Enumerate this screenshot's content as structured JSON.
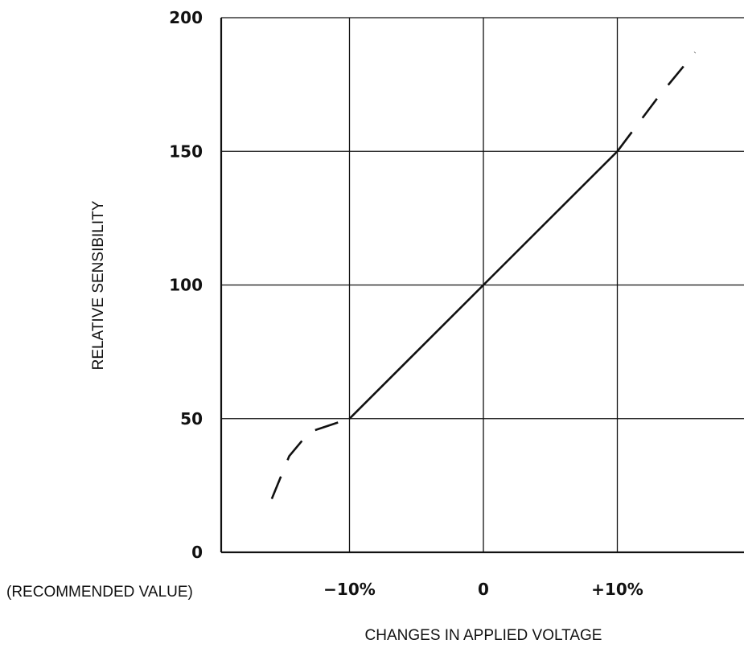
{
  "chart_data": {
    "type": "line",
    "title": "",
    "xlabel": "CHANGES IN APPLIED VOLTAGE",
    "ylabel": "RELATIVE SENSIBILITY",
    "note": "(RECOMMENDED VALUE)",
    "x_unit": "%",
    "xlim": [
      -20,
      20
    ],
    "ylim": [
      0,
      200
    ],
    "x_ticks": [
      {
        "value": -10,
        "label": "−10%"
      },
      {
        "value": 0,
        "label": "0"
      },
      {
        "value": 10,
        "label": "+10%"
      }
    ],
    "y_ticks": [
      {
        "value": 0,
        "label": "0"
      },
      {
        "value": 50,
        "label": "50"
      },
      {
        "value": 100,
        "label": "100"
      },
      {
        "value": 150,
        "label": "150"
      },
      {
        "value": 200,
        "label": "200"
      }
    ],
    "grid": true,
    "series": [
      {
        "style": "solid",
        "points": [
          [
            -10,
            50
          ],
          [
            0,
            100
          ],
          [
            10,
            150
          ]
        ]
      },
      {
        "style": "dashed",
        "points": [
          [
            -15.8,
            20
          ],
          [
            -14.5,
            36
          ],
          [
            -13,
            45
          ],
          [
            -10,
            50
          ]
        ]
      },
      {
        "style": "dashed",
        "points": [
          [
            10,
            150
          ],
          [
            13,
            170
          ],
          [
            15.8,
            187
          ]
        ]
      }
    ]
  }
}
